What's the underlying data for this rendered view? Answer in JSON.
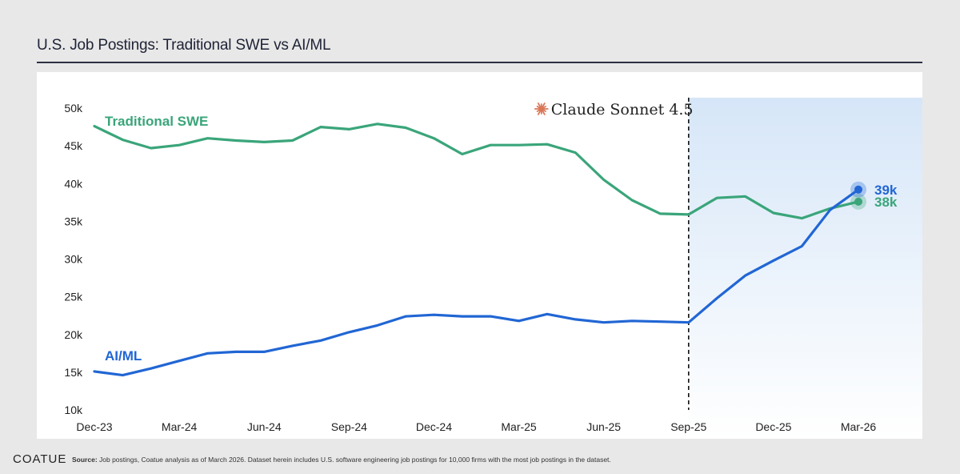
{
  "title": "U.S. Job Postings: Traditional SWE vs AI/ML",
  "footer": {
    "logo": "COATUE",
    "source_label": "Source:",
    "source_text": " Job postings, Coatue analysis as of March 2026. Dataset herein includes U.S. software engineering job postings for 10,000 firms with the most job postings in the dataset."
  },
  "colors": {
    "swe": "#3aa57a",
    "aiml": "#2166d4",
    "highlight": "#dbe8f8"
  },
  "chart_data": {
    "type": "line",
    "title": "U.S. Job Postings: Traditional SWE vs AI/ML",
    "x": [
      "Dec-23",
      "Jan-24",
      "Feb-24",
      "Mar-24",
      "Apr-24",
      "May-24",
      "Jun-24",
      "Jul-24",
      "Aug-24",
      "Sep-24",
      "Oct-24",
      "Nov-24",
      "Dec-24",
      "Jan-25",
      "Feb-25",
      "Mar-25",
      "Apr-25",
      "May-25",
      "Jun-25",
      "Jul-25",
      "Aug-25",
      "Sep-25",
      "Oct-25",
      "Nov-25",
      "Dec-25",
      "Jan-26",
      "Feb-26",
      "Mar-26"
    ],
    "x_tick_labels": [
      "Dec-23",
      "Mar-24",
      "Jun-24",
      "Sep-24",
      "Dec-24",
      "Mar-25",
      "Jun-25",
      "Sep-25",
      "Dec-25",
      "Mar-26"
    ],
    "y_tick_labels": [
      "50k",
      "45k",
      "40k",
      "35k",
      "30k",
      "25k",
      "20k",
      "15k",
      "10k"
    ],
    "ylim": [
      10000,
      50000
    ],
    "series": [
      {
        "name": "Traditional SWE",
        "color": "#3aa57a",
        "values": [
          47600,
          45800,
          44700,
          45100,
          46000,
          45700,
          45500,
          45700,
          47500,
          47200,
          47900,
          47400,
          46000,
          43900,
          45100,
          45100,
          45200,
          44100,
          40500,
          37800,
          36000,
          35900,
          38100,
          38300,
          36100,
          35400,
          36700,
          37600
        ],
        "end_label": "38k"
      },
      {
        "name": "AI/ML",
        "color": "#2166d4",
        "values": [
          15100,
          14600,
          15500,
          16500,
          17500,
          17700,
          17700,
          18500,
          19200,
          20300,
          21200,
          22400,
          22600,
          22400,
          22400,
          21800,
          22700,
          22000,
          21600,
          21800,
          21700,
          21600,
          24800,
          27800,
          29800,
          31700,
          36500,
          39200
        ],
        "end_label": "39k"
      }
    ],
    "annotation": {
      "label": "Claude Sonnet 4.5",
      "x": "Sep-25"
    }
  }
}
